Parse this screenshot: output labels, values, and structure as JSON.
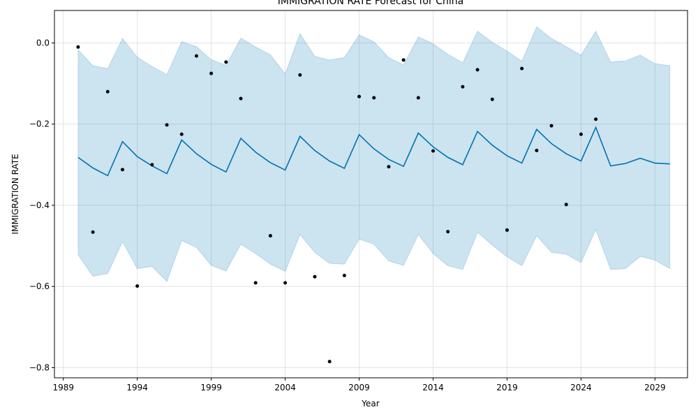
{
  "chart_data": {
    "type": "line",
    "title": "IMMIGRATION RATE Forecast for China",
    "xlabel": "Year",
    "ylabel": "IMMIGRATION RATE",
    "xlim": [
      1988.4,
      2031.2
    ],
    "ylim": [
      -0.825,
      0.08
    ],
    "x_ticks": [
      1989,
      1994,
      1999,
      2004,
      2009,
      2014,
      2019,
      2024,
      2029
    ],
    "y_ticks": [
      0.0,
      -0.2,
      -0.4,
      -0.6,
      -0.8
    ],
    "y_tick_labels": [
      "0.0",
      "−0.2",
      "−0.4",
      "−0.6",
      "−0.8"
    ],
    "grid": true,
    "colors": {
      "forecast": "#0072B2",
      "band": "#0072B2",
      "observed": "#000000"
    },
    "observed": {
      "x": [
        1990,
        1991,
        1992,
        1993,
        1994,
        1995,
        1996,
        1997,
        1998,
        1999,
        2000,
        2001,
        2002,
        2003,
        2004,
        2005,
        2006,
        2007,
        2008,
        2009,
        2010,
        2011,
        2012,
        2013,
        2014,
        2015,
        2016,
        2017,
        2018,
        2019,
        2020,
        2021,
        2022,
        2023,
        2024,
        2025
      ],
      "y": [
        -0.01,
        -0.466,
        -0.12,
        -0.312,
        -0.599,
        -0.3,
        -0.202,
        -0.225,
        -0.032,
        -0.075,
        -0.047,
        -0.137,
        -0.591,
        -0.475,
        -0.591,
        -0.079,
        -0.576,
        -0.785,
        -0.573,
        -0.132,
        -0.135,
        -0.305,
        -0.042,
        -0.135,
        -0.266,
        -0.465,
        -0.108,
        -0.066,
        -0.139,
        -0.461,
        -0.063,
        -0.265,
        -0.204,
        -0.398,
        -0.225,
        -0.188
      ]
    },
    "forecast": {
      "x": [
        1990,
        1991,
        1992,
        1993,
        1994,
        1995,
        1996,
        1997,
        1998,
        1999,
        2000,
        2001,
        2002,
        2003,
        2004,
        2005,
        2006,
        2007,
        2008,
        2009,
        2010,
        2011,
        2012,
        2013,
        2014,
        2015,
        2016,
        2017,
        2018,
        2019,
        2020,
        2021,
        2022,
        2023,
        2024,
        2025,
        2026,
        2027,
        2028,
        2029,
        2030
      ],
      "yhat": [
        -0.282,
        -0.308,
        -0.327,
        -0.243,
        -0.28,
        -0.303,
        -0.322,
        -0.239,
        -0.273,
        -0.299,
        -0.318,
        -0.235,
        -0.269,
        -0.295,
        -0.313,
        -0.23,
        -0.265,
        -0.291,
        -0.309,
        -0.226,
        -0.261,
        -0.287,
        -0.304,
        -0.222,
        -0.256,
        -0.282,
        -0.3,
        -0.218,
        -0.252,
        -0.278,
        -0.296,
        -0.213,
        -0.248,
        -0.273,
        -0.291,
        -0.208,
        -0.303,
        -0.297,
        -0.284,
        -0.296,
        -0.298
      ],
      "yhat_lower": [
        -0.522,
        -0.575,
        -0.568,
        -0.49,
        -0.556,
        -0.551,
        -0.588,
        -0.487,
        -0.504,
        -0.548,
        -0.562,
        -0.496,
        -0.519,
        -0.545,
        -0.563,
        -0.472,
        -0.516,
        -0.543,
        -0.545,
        -0.483,
        -0.496,
        -0.537,
        -0.548,
        -0.472,
        -0.519,
        -0.549,
        -0.558,
        -0.467,
        -0.498,
        -0.527,
        -0.549,
        -0.475,
        -0.516,
        -0.521,
        -0.541,
        -0.46,
        -0.558,
        -0.556,
        -0.526,
        -0.535,
        -0.556
      ],
      "yhat_upper": [
        -0.017,
        -0.056,
        -0.063,
        0.011,
        -0.035,
        -0.058,
        -0.078,
        0.003,
        -0.009,
        -0.041,
        -0.055,
        0.012,
        -0.01,
        -0.029,
        -0.076,
        0.023,
        -0.033,
        -0.042,
        -0.036,
        0.02,
        0.003,
        -0.036,
        -0.054,
        0.015,
        -0.002,
        -0.028,
        -0.049,
        0.029,
        0.002,
        -0.02,
        -0.045,
        0.04,
        0.011,
        -0.009,
        -0.03,
        0.029,
        -0.047,
        -0.044,
        -0.03,
        -0.051,
        -0.056
      ]
    }
  }
}
